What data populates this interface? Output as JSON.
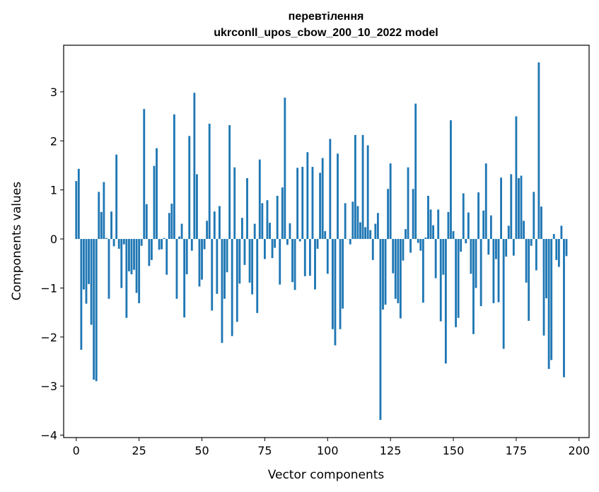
{
  "chart_data": {
    "type": "bar",
    "title_line1": "перевтілення",
    "title_line2": "ukrconll_upos_cbow_200_10_2022 model",
    "xlabel": "Vector components",
    "ylabel": "Components values",
    "xlim": [
      -5,
      204
    ],
    "ylim": [
      -4.05,
      3.95
    ],
    "xticks": [
      0,
      25,
      50,
      75,
      100,
      125,
      150,
      175,
      200
    ],
    "yticks": [
      -4,
      -3,
      -2,
      -1,
      0,
      1,
      2,
      3
    ],
    "bar_color": "#1f77b4",
    "values": [
      1.18,
      1.43,
      -2.26,
      -1.03,
      -1.32,
      -0.92,
      -1.75,
      -2.87,
      -2.9,
      0.96,
      0.55,
      1.16,
      0.02,
      -1.22,
      0.56,
      -0.15,
      1.72,
      -0.2,
      -1.0,
      -0.11,
      -1.61,
      -0.66,
      -0.72,
      -0.63,
      -1.1,
      -1.31,
      -0.14,
      2.65,
      0.71,
      -0.55,
      -0.43,
      1.49,
      1.85,
      -0.22,
      -0.21,
      0.02,
      -0.73,
      0.53,
      0.72,
      2.54,
      -1.22,
      0.05,
      0.31,
      -1.6,
      -0.72,
      2.1,
      -0.24,
      2.98,
      1.32,
      -0.97,
      -0.83,
      -0.21,
      0.37,
      2.35,
      -1.46,
      0.56,
      -1.12,
      0.67,
      -2.12,
      -1.22,
      -0.68,
      2.32,
      -1.98,
      1.46,
      -1.69,
      -0.91,
      0.43,
      -0.53,
      1.24,
      -0.89,
      -1.13,
      0.31,
      -1.51,
      1.62,
      0.73,
      -0.41,
      0.79,
      0.33,
      -0.39,
      -0.18,
      0.88,
      -0.93,
      1.05,
      2.88,
      -0.12,
      0.32,
      -0.88,
      -1.04,
      1.45,
      -0.05,
      1.47,
      -0.76,
      1.77,
      -0.75,
      1.47,
      -1.03,
      -0.2,
      1.35,
      1.65,
      0.16,
      -0.71,
      2.04,
      -1.84,
      -2.17,
      1.74,
      -1.84,
      -1.42,
      0.73,
      0.0,
      -0.11,
      0.76,
      2.12,
      0.67,
      0.34,
      2.12,
      0.24,
      1.91,
      0.18,
      -0.43,
      0.31,
      0.53,
      -3.69,
      -1.44,
      -1.34,
      1.02,
      1.54,
      -0.7,
      -1.22,
      -1.31,
      -1.62,
      -0.44,
      0.2,
      1.46,
      -0.28,
      1.02,
      2.76,
      -0.08,
      -0.24,
      -1.3,
      0.03,
      0.88,
      0.6,
      0.28,
      -0.8,
      0.6,
      -1.68,
      -0.73,
      -2.54,
      0.55,
      2.42,
      0.16,
      -1.8,
      -1.61,
      -0.26,
      0.93,
      -0.09,
      0.54,
      -0.71,
      -1.94,
      -1.0,
      0.95,
      -1.37,
      0.58,
      1.54,
      -0.32,
      0.48,
      -1.31,
      -0.41,
      -1.29,
      1.25,
      -2.24,
      -0.36,
      0.27,
      1.32,
      -0.34,
      2.5,
      1.24,
      1.29,
      0.37,
      -0.89,
      -1.67,
      -0.14,
      0.96,
      -0.64,
      3.6,
      0.66,
      -1.97,
      -1.21,
      -2.65,
      -2.47,
      0.1,
      -0.43,
      -0.57,
      0.27,
      -2.82,
      -0.35
    ]
  }
}
